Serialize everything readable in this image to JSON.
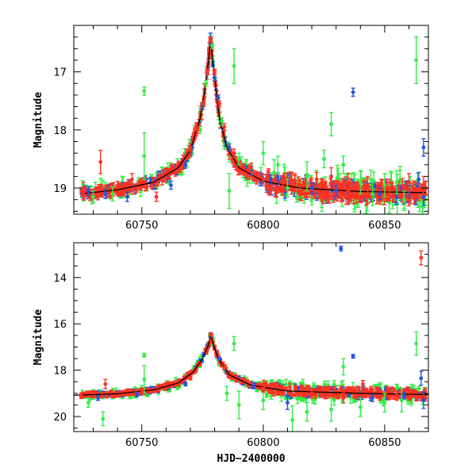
{
  "chart_data": [
    {
      "type": "scatter",
      "panel": "top",
      "title": "",
      "xlabel": "",
      "ylabel": "Magnitude",
      "xlim": [
        60722,
        60868
      ],
      "ylim": [
        19.45,
        16.2
      ],
      "y_inverted": true,
      "xticks": [
        60750,
        60800,
        60850
      ],
      "yticks": [
        17,
        18,
        19
      ],
      "grid": false,
      "legend": "none",
      "colors": {
        "blue": "#2255dd",
        "green": "#33ee44",
        "red": "#ff3322",
        "model": "#000000"
      },
      "model_curve": [
        [
          60725,
          19.1
        ],
        [
          60740,
          19.03
        ],
        [
          60755,
          18.9
        ],
        [
          60765,
          18.65
        ],
        [
          60770,
          18.35
        ],
        [
          60774,
          17.8
        ],
        [
          60776,
          17.3
        ],
        [
          60777.5,
          16.8
        ],
        [
          60778.3,
          16.45
        ],
        [
          60779.2,
          16.8
        ],
        [
          60780.5,
          17.3
        ],
        [
          60782,
          17.8
        ],
        [
          60785,
          18.3
        ],
        [
          60790,
          18.65
        ],
        [
          60800,
          18.88
        ],
        [
          60815,
          19.0
        ],
        [
          60840,
          19.06
        ],
        [
          60867,
          19.08
        ]
      ],
      "series": [
        {
          "color": "blue",
          "points": [
            [
              60728,
              19.05,
              0.08
            ],
            [
              60735,
              19.1,
              0.08
            ],
            [
              60744,
              19.15,
              0.08
            ],
            [
              60762,
              18.95,
              0.07
            ],
            [
              60768,
              18.6,
              0.06
            ],
            [
              60775,
              17.6,
              0.05
            ],
            [
              60777,
              17.0,
              0.05
            ],
            [
              60778.3,
              16.5,
              0.05
            ],
            [
              60780,
              17.1,
              0.05
            ],
            [
              60781.5,
              17.45,
              0.05
            ],
            [
              60786,
              18.3,
              0.06
            ],
            [
              60795,
              18.7,
              0.07
            ],
            [
              60803,
              18.85,
              0.08
            ],
            [
              60820,
              19.0,
              0.09
            ],
            [
              60830,
              19.05,
              0.09
            ],
            [
              60837,
              17.35,
              0.07
            ],
            [
              60848,
              19.1,
              0.1
            ],
            [
              60860,
              19.05,
              0.1
            ],
            [
              60864,
              18.85,
              0.12
            ],
            [
              60866,
              18.3,
              0.15
            ],
            [
              60866,
              19.15,
              0.15
            ]
          ]
        },
        {
          "color": "green",
          "points": [
            [
              60730,
              19.15,
              0.1
            ],
            [
              60738,
              19.1,
              0.12
            ],
            [
              60751,
              17.33,
              0.07
            ],
            [
              60751,
              18.45,
              0.4
            ],
            [
              60774,
              18.0,
              0.06
            ],
            [
              60776.5,
              17.2,
              0.05
            ],
            [
              60779,
              16.55,
              0.05
            ],
            [
              60783,
              17.85,
              0.06
            ],
            [
              60786,
              19.05,
              0.3
            ],
            [
              60788,
              16.9,
              0.3
            ],
            [
              60790,
              18.5,
              0.1
            ],
            [
              60800,
              18.4,
              0.2
            ],
            [
              60806,
              18.6,
              0.15
            ],
            [
              60810,
              19.0,
              0.15
            ],
            [
              60818,
              18.8,
              0.25
            ],
            [
              60825,
              18.5,
              0.15
            ],
            [
              60828,
              17.9,
              0.2
            ],
            [
              60833,
              18.6,
              0.15
            ],
            [
              60840,
              18.9,
              0.2
            ],
            [
              60845,
              19.1,
              0.2
            ],
            [
              60850,
              18.95,
              0.2
            ],
            [
              60855,
              18.9,
              0.2
            ],
            [
              60858,
              19.2,
              0.15
            ],
            [
              60863,
              16.8,
              0.4
            ]
          ]
        },
        {
          "color": "red",
          "points": [
            [
              60726,
              19.0,
              0.1
            ],
            [
              60733,
              18.55,
              0.2
            ],
            [
              60746,
              18.85,
              0.1
            ],
            [
              60756,
              19.15,
              0.08
            ],
            [
              60770,
              18.3,
              0.06
            ],
            [
              60773,
              18.0,
              0.06
            ],
            [
              60775.5,
              17.55,
              0.05
            ],
            [
              60777,
              17.0,
              0.05
            ],
            [
              60778.3,
              16.45,
              0.05
            ],
            [
              60780,
              17.0,
              0.05
            ],
            [
              60782,
              17.55,
              0.05
            ],
            [
              60784,
              17.95,
              0.06
            ],
            [
              60788,
              18.4,
              0.07
            ],
            [
              60795,
              18.65,
              0.08
            ],
            [
              60800,
              18.85,
              0.08
            ],
            [
              60808,
              18.9,
              0.09
            ],
            [
              60815,
              18.95,
              0.1
            ],
            [
              60822,
              18.85,
              0.12
            ],
            [
              60828,
              18.8,
              0.15
            ],
            [
              60835,
              18.9,
              0.15
            ],
            [
              60843,
              18.95,
              0.15
            ],
            [
              60852,
              19.0,
              0.15
            ],
            [
              60860,
              18.9,
              0.15
            ],
            [
              60866,
              18.95,
              0.15
            ]
          ]
        }
      ]
    },
    {
      "type": "scatter",
      "panel": "bottom",
      "title": "",
      "xlabel": "HJD−2400000",
      "ylabel": "Magnitude",
      "xlim": [
        60722,
        60868
      ],
      "ylim": [
        20.65,
        12.5
      ],
      "y_inverted": true,
      "xticks": [
        60750,
        60800,
        60850
      ],
      "yticks": [
        14,
        16,
        18,
        20
      ],
      "grid": false,
      "legend": "none",
      "colors": {
        "blue": "#2255dd",
        "green": "#33ee44",
        "red": "#ff3322",
        "model": "#000000"
      },
      "model_curve": [
        [
          60722,
          19.08
        ],
        [
          60740,
          19.02
        ],
        [
          60755,
          18.85
        ],
        [
          60765,
          18.55
        ],
        [
          60771,
          18.1
        ],
        [
          60775,
          17.5
        ],
        [
          60777.5,
          16.9
        ],
        [
          60778.3,
          16.45
        ],
        [
          60779.5,
          16.9
        ],
        [
          60781.5,
          17.5
        ],
        [
          60786,
          18.2
        ],
        [
          60795,
          18.65
        ],
        [
          60810,
          18.9
        ],
        [
          60840,
          19.0
        ],
        [
          60868,
          19.05
        ]
      ],
      "series": [
        {
          "color": "blue",
          "points": [
            [
              60732,
              19.2,
              0.1
            ],
            [
              60748,
              19.05,
              0.1
            ],
            [
              60768,
              18.6,
              0.08
            ],
            [
              60778.3,
              16.5,
              0.06
            ],
            [
              60782,
              17.5,
              0.06
            ],
            [
              60796,
              18.7,
              0.1
            ],
            [
              60810,
              19.4,
              0.3
            ],
            [
              60832,
              12.75,
              0.1
            ],
            [
              60837,
              17.4,
              0.08
            ],
            [
              60845,
              19.2,
              0.15
            ],
            [
              60858,
              19.1,
              0.15
            ],
            [
              60865,
              18.35,
              0.3
            ],
            [
              60866,
              19.3,
              0.35
            ]
          ]
        },
        {
          "color": "green",
          "points": [
            [
              60728,
              19.4,
              0.2
            ],
            [
              60734,
              20.1,
              0.3
            ],
            [
              60751,
              17.35,
              0.08
            ],
            [
              60751,
              18.4,
              0.6
            ],
            [
              60785,
              19.0,
              0.3
            ],
            [
              60788,
              16.85,
              0.3
            ],
            [
              60790,
              19.5,
              0.6
            ],
            [
              60800,
              19.3,
              0.4
            ],
            [
              60812,
              20.15,
              0.6
            ],
            [
              60818,
              19.8,
              0.4
            ],
            [
              60828,
              19.7,
              0.5
            ],
            [
              60833,
              17.85,
              0.35
            ],
            [
              60840,
              19.6,
              0.4
            ],
            [
              60850,
              19.4,
              0.4
            ],
            [
              60857,
              19.3,
              0.5
            ],
            [
              60863,
              16.85,
              0.5
            ]
          ]
        },
        {
          "color": "red",
          "points": [
            [
              60725,
              19.1,
              0.1
            ],
            [
              60735,
              18.6,
              0.2
            ],
            [
              60750,
              18.95,
              0.1
            ],
            [
              60770,
              18.35,
              0.07
            ],
            [
              60778.3,
              16.45,
              0.06
            ],
            [
              60784,
              17.9,
              0.07
            ],
            [
              60800,
              18.85,
              0.1
            ],
            [
              60820,
              19.0,
              0.15
            ],
            [
              60833,
              19.2,
              0.2
            ],
            [
              60841,
              18.6,
              0.15
            ],
            [
              60855,
              19.1,
              0.2
            ],
            [
              60865,
              13.15,
              0.3
            ]
          ]
        }
      ]
    }
  ]
}
